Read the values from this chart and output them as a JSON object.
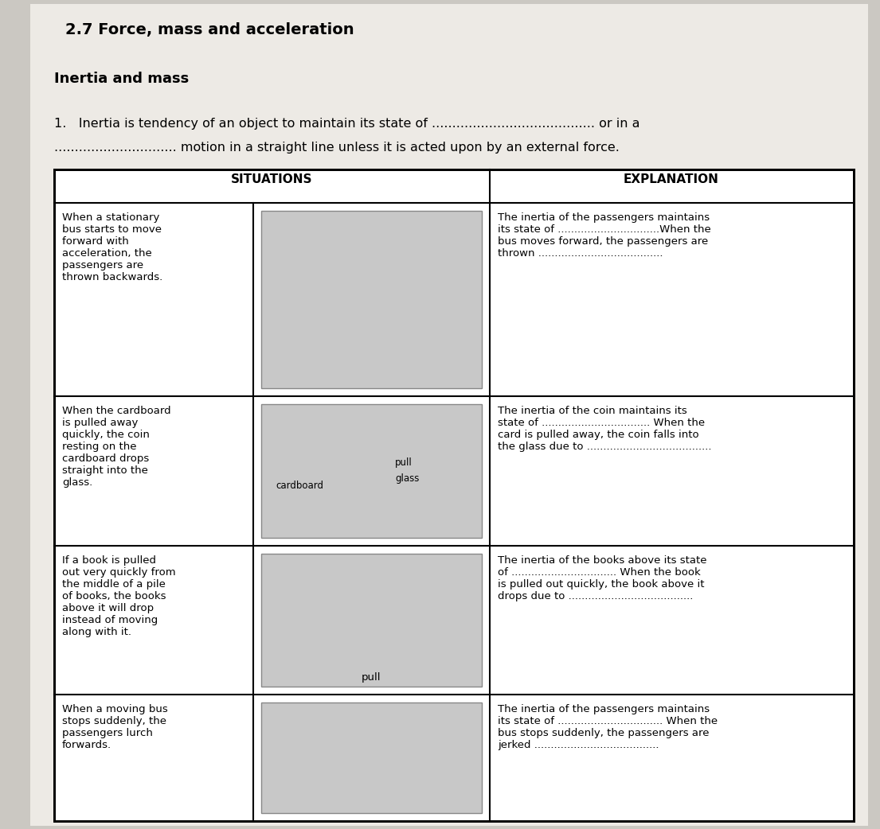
{
  "title": "2.7 Force, mass and acceleration",
  "subtitle": "Inertia and mass",
  "q_line1": "1.   Inertia is tendency of an object to maintain its state of ........................................ or in a",
  "q_line2": ".............................. motion in a straight line unless it is acted upon by an external force.",
  "hdr_sit": "SITUATIONS",
  "hdr_exp": "EXPLANATION",
  "bg_color": "#cbc8c2",
  "page_color": "#edeae5",
  "rows": [
    {
      "sit": "When a stationary\nbus starts to move\nforward with\nacceleration, the\npassengers are\nthrown backwards.",
      "exp": "The inertia of the passengers maintains\nits state of ...............................When the\nbus moves forward, the passengers are\nthrown ......................................"
    },
    {
      "sit": "When the cardboard\nis pulled away\nquickly, the coin\nresting on the\ncardboard drops\nstraight into the\nglass.",
      "exp": "The inertia of the coin maintains its\nstate of ................................. When the\ncard is pulled away, the coin falls into\nthe glass due to ......................................"
    },
    {
      "sit": "If a book is pulled\nout very quickly from\nthe middle of a pile\nof books, the books\nabove it will drop\ninstead of moving\nalong with it.",
      "exp": "The inertia of the books above its state\nof ................................ When the book\nis pulled out quickly, the book above it\ndrops due to ......................................"
    },
    {
      "sit": "When a moving bus\nstops suddenly, the\npassengers lurch\nforwards.",
      "exp": "The inertia of the passengers maintains\nits state of ................................ When the\nbus stops suddenly, the passengers are\njerked ......................................"
    }
  ],
  "img_label_cardboard": "cardboard",
  "img_label_pull": "pull",
  "img_label_glass": "glass",
  "img_label_pull2": "pull"
}
